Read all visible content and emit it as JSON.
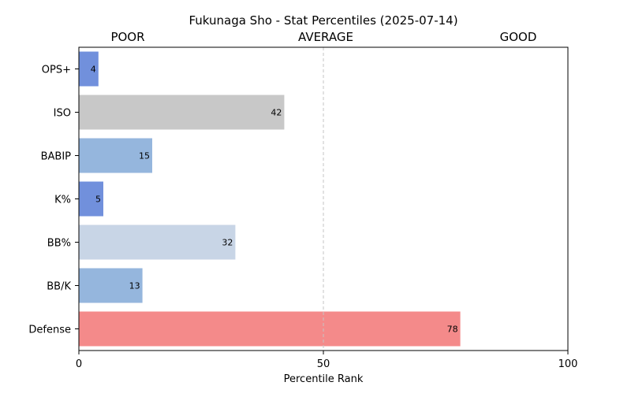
{
  "chart_data": {
    "type": "bar",
    "orientation": "horizontal",
    "title": "Fukunaga Sho - Stat Percentiles (2025-07-14)",
    "xlabel": "Percentile Rank",
    "ylabel": "",
    "xlim": [
      0,
      100
    ],
    "xticks": [
      "0",
      "50",
      "100"
    ],
    "zone_labels": [
      "POOR",
      "AVERAGE",
      "GOOD"
    ],
    "reference_line": 50,
    "grid": false,
    "categories": [
      "OPS+",
      "ISO",
      "BABIP",
      "K%",
      "BB%",
      "BB/K",
      "Defense"
    ],
    "values": [
      4,
      42,
      15,
      5,
      32,
      13,
      78
    ],
    "bar_colors": [
      "#7190dc",
      "#c8c8c8",
      "#95b6dd",
      "#7190dc",
      "#c8d5e6",
      "#95b6dd",
      "#f48a8a"
    ]
  }
}
